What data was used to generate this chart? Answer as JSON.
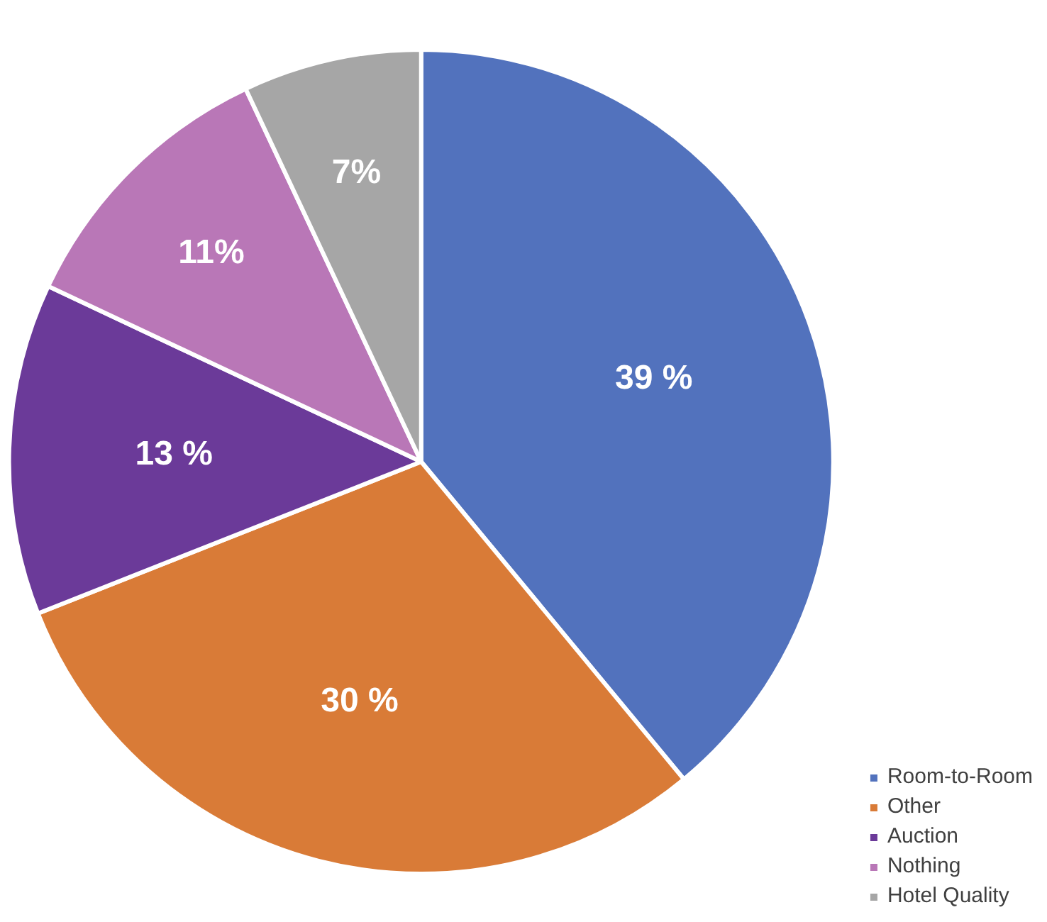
{
  "chart_data": {
    "type": "pie",
    "categories": [
      "Room-to-Room",
      "Other",
      "Auction",
      "Nothing",
      "Hotel Quality"
    ],
    "values": [
      39,
      30,
      13,
      11,
      7
    ],
    "colors": [
      "#5272bd",
      "#d97b37",
      "#6b3a99",
      "#b977b7",
      "#a6a6a6"
    ],
    "value_labels": [
      "39 %",
      "30 %",
      "13 %",
      "11%",
      "7%"
    ],
    "legend": "bottom right"
  }
}
